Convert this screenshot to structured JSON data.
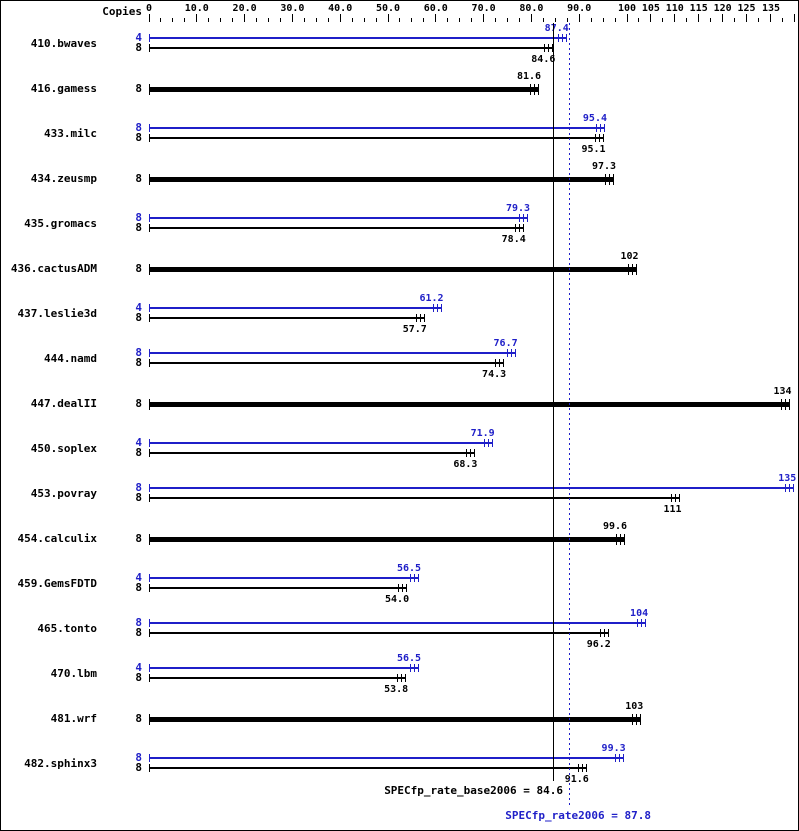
{
  "colors": {
    "peak_blue": "#1f1fc8",
    "base_black": "#000000"
  },
  "chart_data": {
    "type": "bar",
    "orientation": "horizontal",
    "copies_header": "Copies",
    "axis": {
      "min": 0,
      "max": 135,
      "minor_step": 2.5,
      "ticks": [
        {
          "value": 0,
          "label": "0"
        },
        {
          "value": 10,
          "label": "10.0"
        },
        {
          "value": 20,
          "label": "20.0"
        },
        {
          "value": 30,
          "label": "30.0"
        },
        {
          "value": 40,
          "label": "40.0"
        },
        {
          "value": 50,
          "label": "50.0"
        },
        {
          "value": 60,
          "label": "60.0"
        },
        {
          "value": 70,
          "label": "70.0"
        },
        {
          "value": 80,
          "label": "80.0"
        },
        {
          "value": 90,
          "label": "90.0"
        },
        {
          "value": 100,
          "label": "100"
        },
        {
          "value": 105,
          "label": "105"
        },
        {
          "value": 110,
          "label": "110"
        },
        {
          "value": 115,
          "label": "115"
        },
        {
          "value": 120,
          "label": "120"
        },
        {
          "value": 125,
          "label": "125"
        },
        {
          "value": 130,
          "label": ""
        },
        {
          "value": 135,
          "label": "135"
        }
      ]
    },
    "benchmarks": [
      {
        "name": "410.bwaves",
        "bars": [
          {
            "copies": "4",
            "kind": "peak",
            "value": 87.4,
            "label": "87.4"
          },
          {
            "copies": "8",
            "kind": "base",
            "value": 84.6,
            "label": "84.6"
          }
        ]
      },
      {
        "name": "416.gamess",
        "bars": [
          {
            "copies": "8",
            "kind": "single",
            "value": 81.6,
            "label": "81.6"
          }
        ]
      },
      {
        "name": "433.milc",
        "bars": [
          {
            "copies": "8",
            "kind": "peak",
            "value": 95.4,
            "label": "95.4"
          },
          {
            "copies": "8",
            "kind": "base",
            "value": 95.1,
            "label": "95.1"
          }
        ]
      },
      {
        "name": "434.zeusmp",
        "bars": [
          {
            "copies": "8",
            "kind": "single",
            "value": 97.3,
            "label": "97.3"
          }
        ]
      },
      {
        "name": "435.gromacs",
        "bars": [
          {
            "copies": "8",
            "kind": "peak",
            "value": 79.3,
            "label": "79.3"
          },
          {
            "copies": "8",
            "kind": "base",
            "value": 78.4,
            "label": "78.4"
          }
        ]
      },
      {
        "name": "436.cactusADM",
        "bars": [
          {
            "copies": "8",
            "kind": "single",
            "value": 102,
            "label": "102"
          }
        ]
      },
      {
        "name": "437.leslie3d",
        "bars": [
          {
            "copies": "4",
            "kind": "peak",
            "value": 61.2,
            "label": "61.2"
          },
          {
            "copies": "8",
            "kind": "base",
            "value": 57.7,
            "label": "57.7"
          }
        ]
      },
      {
        "name": "444.namd",
        "bars": [
          {
            "copies": "8",
            "kind": "peak",
            "value": 76.7,
            "label": "76.7"
          },
          {
            "copies": "8",
            "kind": "base",
            "value": 74.3,
            "label": "74.3"
          }
        ]
      },
      {
        "name": "447.dealII",
        "bars": [
          {
            "copies": "8",
            "kind": "single",
            "value": 134,
            "label": "134"
          }
        ]
      },
      {
        "name": "450.soplex",
        "bars": [
          {
            "copies": "4",
            "kind": "peak",
            "value": 71.9,
            "label": "71.9"
          },
          {
            "copies": "8",
            "kind": "base",
            "value": 68.3,
            "label": "68.3"
          }
        ]
      },
      {
        "name": "453.povray",
        "bars": [
          {
            "copies": "8",
            "kind": "peak",
            "value": 135,
            "label": "135"
          },
          {
            "copies": "8",
            "kind": "base",
            "value": 111,
            "label": "111"
          }
        ]
      },
      {
        "name": "454.calculix",
        "bars": [
          {
            "copies": "8",
            "kind": "single",
            "value": 99.6,
            "label": "99.6"
          }
        ]
      },
      {
        "name": "459.GemsFDTD",
        "bars": [
          {
            "copies": "4",
            "kind": "peak",
            "value": 56.5,
            "label": "56.5"
          },
          {
            "copies": "8",
            "kind": "base",
            "value": 54.0,
            "label": "54.0"
          }
        ]
      },
      {
        "name": "465.tonto",
        "bars": [
          {
            "copies": "8",
            "kind": "peak",
            "value": 104,
            "label": "104"
          },
          {
            "copies": "8",
            "kind": "base",
            "value": 96.2,
            "label": "96.2"
          }
        ]
      },
      {
        "name": "470.lbm",
        "bars": [
          {
            "copies": "4",
            "kind": "peak",
            "value": 56.5,
            "label": "56.5"
          },
          {
            "copies": "8",
            "kind": "base",
            "value": 53.8,
            "label": "53.8"
          }
        ]
      },
      {
        "name": "481.wrf",
        "bars": [
          {
            "copies": "8",
            "kind": "single",
            "value": 103,
            "label": "103"
          }
        ]
      },
      {
        "name": "482.sphinx3",
        "bars": [
          {
            "copies": "8",
            "kind": "peak",
            "value": 99.3,
            "label": "99.3"
          },
          {
            "copies": "8",
            "kind": "base",
            "value": 91.6,
            "label": "91.6"
          }
        ]
      }
    ],
    "reference_lines": {
      "base": {
        "value": 84.6,
        "style": "solid"
      },
      "peak": {
        "value": 87.8,
        "style": "dotted"
      }
    },
    "summary": {
      "base_text": "SPECfp_rate_base2006 = 84.6",
      "peak_text": "SPECfp_rate2006 = 87.8"
    }
  }
}
